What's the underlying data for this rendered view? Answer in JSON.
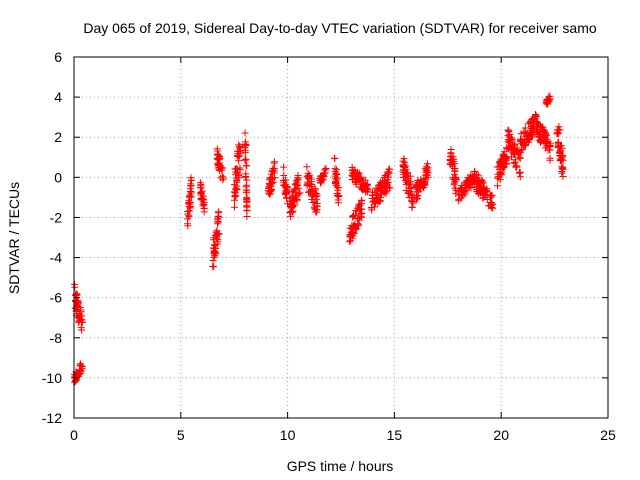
{
  "chart_data": {
    "type": "scatter",
    "title": "Day 065 of 2019, Sidereal Day-to-day VTEC variation (SDTVAR) for receiver samo",
    "xlabel": "GPS time / hours",
    "ylabel": "SDTVAR / TECUs",
    "xlim": [
      0,
      25
    ],
    "ylim": [
      -12,
      6
    ],
    "xticks": [
      0,
      5,
      10,
      15,
      20,
      25
    ],
    "yticks": [
      -12,
      -10,
      -8,
      -6,
      -4,
      -2,
      0,
      2,
      4,
      6
    ],
    "grid": true,
    "marker": "+",
    "colors": {
      "marker": "#ff0000",
      "grid": "#a0a0a0",
      "axis": "#000000"
    },
    "clusters": [
      {
        "x": [
          0.0,
          0.4
        ],
        "y": [
          -10.3,
          -9.1
        ]
      },
      {
        "x": [
          0.0,
          0.4
        ],
        "y": [
          -8.0,
          -5.2
        ]
      },
      {
        "x": [
          5.3,
          5.5
        ],
        "y": [
          -2.8,
          0.3
        ]
      },
      {
        "x": [
          5.9,
          6.1
        ],
        "y": [
          -1.8,
          -0.1
        ]
      },
      {
        "x": [
          6.5,
          6.8
        ],
        "y": [
          -4.7,
          -1.5
        ]
      },
      {
        "x": [
          6.7,
          7.0
        ],
        "y": [
          -0.5,
          1.5
        ]
      },
      {
        "x": [
          7.5,
          7.8
        ],
        "y": [
          -1.6,
          2.3
        ]
      },
      {
        "x": [
          8.0,
          8.1
        ],
        "y": [
          -2.1,
          3.0
        ]
      },
      {
        "x": [
          9.1,
          9.4
        ],
        "y": [
          -1.2,
          0.9
        ]
      },
      {
        "x": [
          9.8,
          10.0
        ],
        "y": [
          -1.5,
          0.6
        ]
      },
      {
        "x": [
          10.1,
          10.6
        ],
        "y": [
          -2.2,
          0.4
        ]
      },
      {
        "x": [
          10.9,
          11.4
        ],
        "y": [
          -2.0,
          0.6
        ]
      },
      {
        "x": [
          11.5,
          11.8
        ],
        "y": [
          -0.4,
          0.5
        ]
      },
      {
        "x": [
          12.2,
          12.4
        ],
        "y": [
          -1.5,
          1.0
        ]
      },
      {
        "x": [
          12.9,
          13.5
        ],
        "y": [
          -3.3,
          -1.0
        ]
      },
      {
        "x": [
          13.0,
          13.8
        ],
        "y": [
          -1.0,
          0.6
        ]
      },
      {
        "x": [
          13.9,
          14.8
        ],
        "y": [
          -1.8,
          0.5
        ]
      },
      {
        "x": [
          15.4,
          15.9
        ],
        "y": [
          -1.8,
          1.2
        ]
      },
      {
        "x": [
          16.0,
          16.6
        ],
        "y": [
          -1.2,
          0.8
        ]
      },
      {
        "x": [
          17.6,
          17.9
        ],
        "y": [
          -1.0,
          1.8
        ]
      },
      {
        "x": [
          18.0,
          18.8
        ],
        "y": [
          -1.2,
          0.4
        ]
      },
      {
        "x": [
          18.8,
          19.6
        ],
        "y": [
          -1.8,
          0.3
        ]
      },
      {
        "x": [
          19.8,
          20.3
        ],
        "y": [
          -0.5,
          1.7
        ]
      },
      {
        "x": [
          20.3,
          20.9
        ],
        "y": [
          0.0,
          2.5
        ]
      },
      {
        "x": [
          20.9,
          21.7
        ],
        "y": [
          1.2,
          3.3
        ]
      },
      {
        "x": [
          21.7,
          22.3
        ],
        "y": [
          0.8,
          3.0
        ]
      },
      {
        "x": [
          22.1,
          22.3
        ],
        "y": [
          3.5,
          4.2
        ]
      },
      {
        "x": [
          22.6,
          22.9
        ],
        "y": [
          -0.3,
          3.4
        ]
      }
    ]
  }
}
